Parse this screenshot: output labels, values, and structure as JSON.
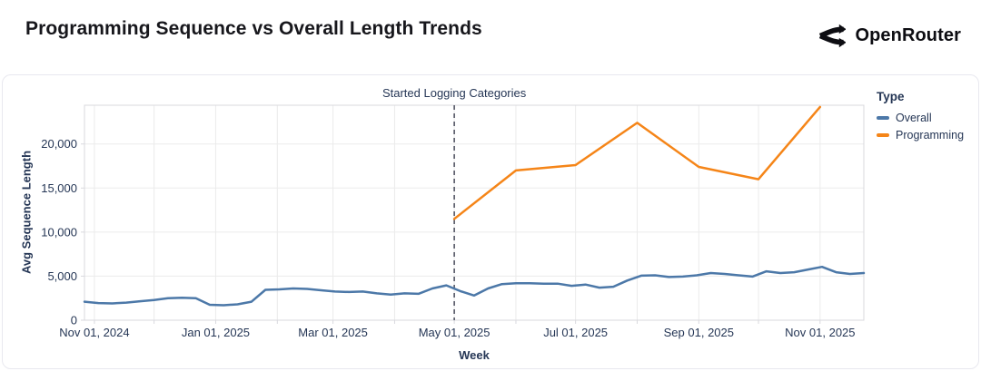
{
  "header": {
    "title": "Programming Sequence vs Overall Length Trends",
    "brand": "OpenRouter"
  },
  "chart_data": {
    "type": "line",
    "title": "Programming Sequence vs Overall Length Trends",
    "xlabel": "Week",
    "ylabel": "Avg Sequence Length",
    "x_domain": [
      "2024-10-27",
      "2025-11-23"
    ],
    "ylim": [
      0,
      24400
    ],
    "grid": true,
    "x_ticks": [
      {
        "date": "2024-11-01",
        "label": "Nov 01, 2024"
      },
      {
        "date": "2025-01-01",
        "label": "Jan 01, 2025"
      },
      {
        "date": "2025-03-01",
        "label": "Mar 01, 2025"
      },
      {
        "date": "2025-05-01",
        "label": "May 01, 2025"
      },
      {
        "date": "2025-07-01",
        "label": "Jul 01, 2025"
      },
      {
        "date": "2025-09-01",
        "label": "Sep 01, 2025"
      },
      {
        "date": "2025-11-01",
        "label": "Nov 01, 2025"
      }
    ],
    "y_ticks": [
      {
        "value": 0,
        "label": "0"
      },
      {
        "value": 5000,
        "label": "5,000"
      },
      {
        "value": 10000,
        "label": "10,000"
      },
      {
        "value": 15000,
        "label": "15,000"
      },
      {
        "value": 20000,
        "label": "20,000"
      }
    ],
    "annotation": {
      "label": "Started Logging Categories",
      "date": "2025-05-01"
    },
    "legend": {
      "title": "Type",
      "position": "right"
    },
    "colors": {
      "text": "#253655",
      "grid": "#ebebeb",
      "axis_border": "#d9d9de",
      "annotation_line": "#474a59"
    },
    "series": [
      {
        "name": "Overall",
        "color": "#4c78a8",
        "points": [
          [
            "2024-10-27",
            2100
          ],
          [
            "2024-11-03",
            1950
          ],
          [
            "2024-11-10",
            1900
          ],
          [
            "2024-11-17",
            2000
          ],
          [
            "2024-11-24",
            2150
          ],
          [
            "2024-12-01",
            2300
          ],
          [
            "2024-12-08",
            2500
          ],
          [
            "2024-12-15",
            2550
          ],
          [
            "2024-12-22",
            2500
          ],
          [
            "2024-12-29",
            1750
          ],
          [
            "2025-01-05",
            1700
          ],
          [
            "2025-01-12",
            1800
          ],
          [
            "2025-01-19",
            2100
          ],
          [
            "2025-01-26",
            3450
          ],
          [
            "2025-02-02",
            3500
          ],
          [
            "2025-02-09",
            3600
          ],
          [
            "2025-02-16",
            3550
          ],
          [
            "2025-02-23",
            3400
          ],
          [
            "2025-03-02",
            3250
          ],
          [
            "2025-03-09",
            3200
          ],
          [
            "2025-03-16",
            3250
          ],
          [
            "2025-03-23",
            3050
          ],
          [
            "2025-03-30",
            2900
          ],
          [
            "2025-04-06",
            3050
          ],
          [
            "2025-04-13",
            3000
          ],
          [
            "2025-04-20",
            3600
          ],
          [
            "2025-04-27",
            3950
          ],
          [
            "2025-05-04",
            3300
          ],
          [
            "2025-05-11",
            2800
          ],
          [
            "2025-05-18",
            3600
          ],
          [
            "2025-05-25",
            4100
          ],
          [
            "2025-06-01",
            4200
          ],
          [
            "2025-06-08",
            4200
          ],
          [
            "2025-06-15",
            4150
          ],
          [
            "2025-06-22",
            4150
          ],
          [
            "2025-06-29",
            3900
          ],
          [
            "2025-07-06",
            4050
          ],
          [
            "2025-07-13",
            3700
          ],
          [
            "2025-07-20",
            3800
          ],
          [
            "2025-07-27",
            4500
          ],
          [
            "2025-08-03",
            5050
          ],
          [
            "2025-08-10",
            5100
          ],
          [
            "2025-08-17",
            4900
          ],
          [
            "2025-08-24",
            4950
          ],
          [
            "2025-08-31",
            5100
          ],
          [
            "2025-09-07",
            5350
          ],
          [
            "2025-09-14",
            5250
          ],
          [
            "2025-09-21",
            5100
          ],
          [
            "2025-09-28",
            4950
          ],
          [
            "2025-10-05",
            5550
          ],
          [
            "2025-10-12",
            5350
          ],
          [
            "2025-10-19",
            5450
          ],
          [
            "2025-10-26",
            5750
          ],
          [
            "2025-11-02",
            6050
          ],
          [
            "2025-11-09",
            5450
          ],
          [
            "2025-11-16",
            5250
          ],
          [
            "2025-11-23",
            5350
          ]
        ]
      },
      {
        "name": "Programming",
        "color": "#f58518",
        "points": [
          [
            "2025-05-01",
            11500
          ],
          [
            "2025-06-01",
            17000
          ],
          [
            "2025-07-01",
            17600
          ],
          [
            "2025-08-01",
            22400
          ],
          [
            "2025-09-01",
            17400
          ],
          [
            "2025-10-01",
            16000
          ],
          [
            "2025-11-01",
            24200
          ]
        ]
      }
    ]
  }
}
